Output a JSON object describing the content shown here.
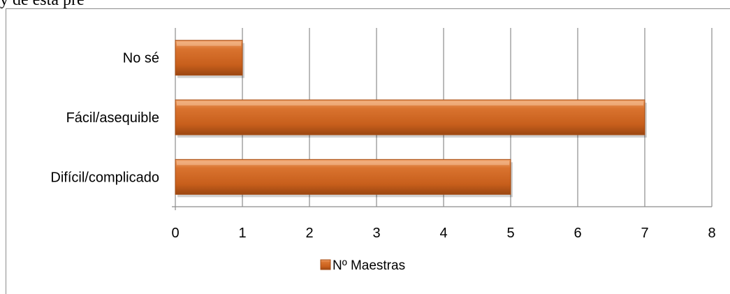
{
  "page_fragment": "y de esta pre",
  "chart_data": {
    "type": "bar",
    "orientation": "horizontal",
    "categories": [
      "No sé",
      "Fácil/asequible",
      "Difícil/complicado"
    ],
    "series": [
      {
        "name": "Nº Maestras",
        "values": [
          1,
          7,
          5
        ],
        "color": "#d2691e"
      }
    ],
    "xlim": [
      0,
      8
    ],
    "x_ticks": [
      "0",
      "1",
      "2",
      "3",
      "4",
      "5",
      "6",
      "7",
      "8"
    ],
    "grid": true,
    "legend_position": "bottom"
  }
}
